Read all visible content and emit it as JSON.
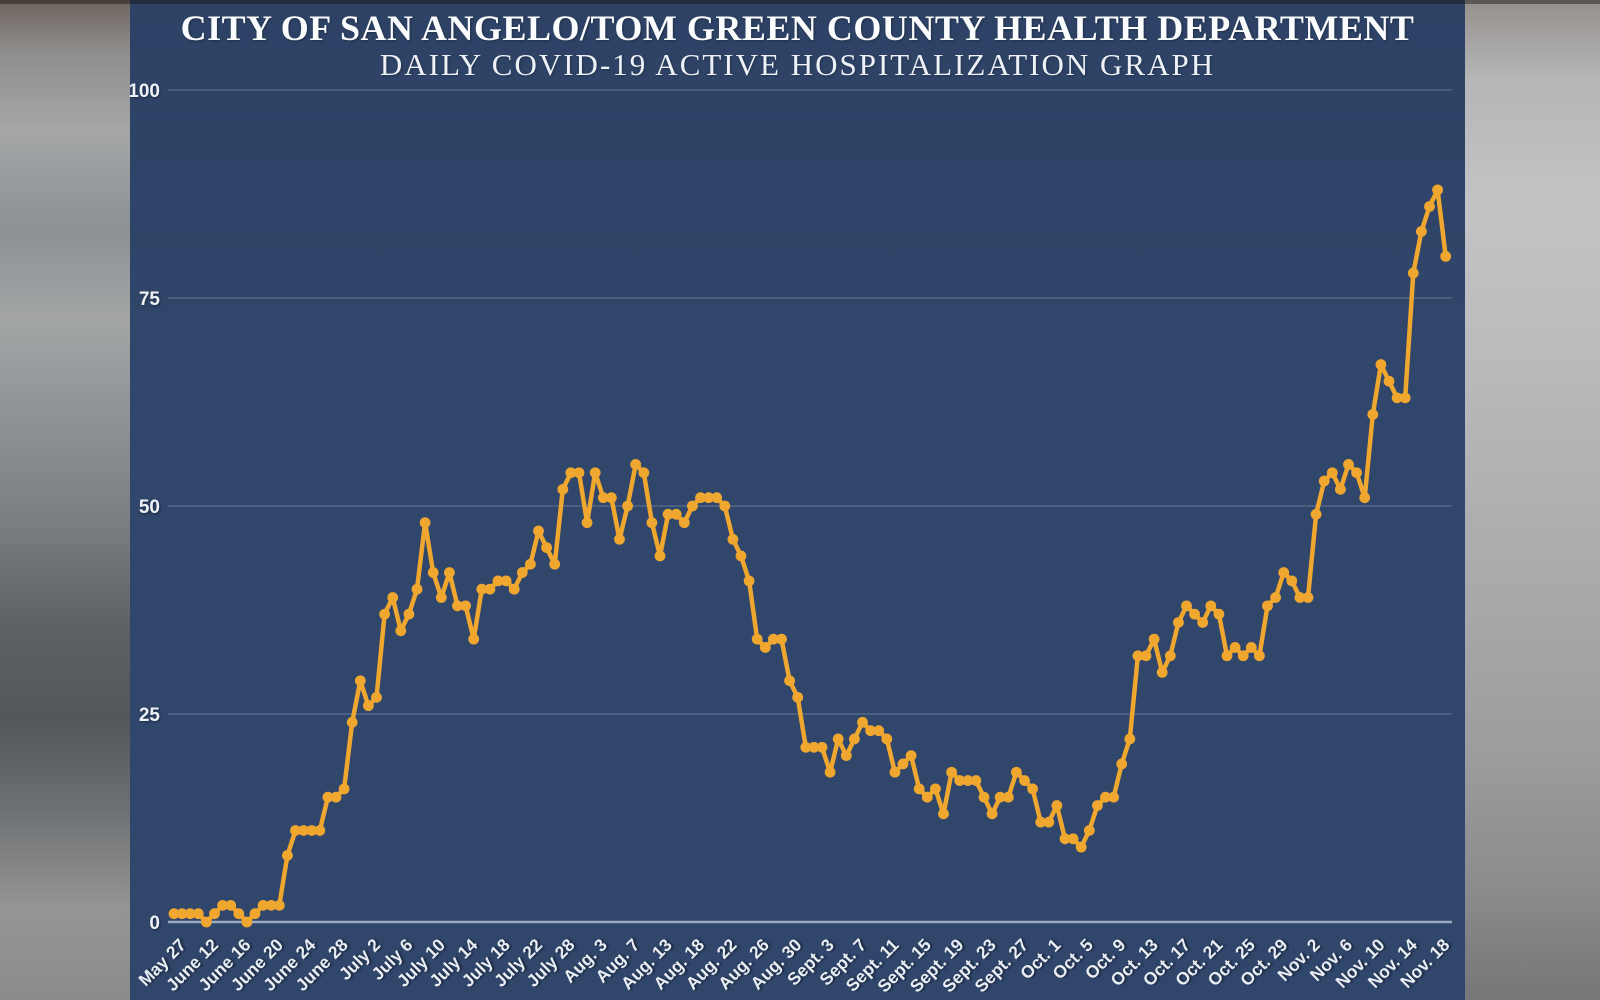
{
  "header": {
    "title": "CITY OF SAN ANGELO/TOM GREEN COUNTY HEALTH DEPARTMENT",
    "subtitle": "DAILY COVID-19 ACTIVE HOSPITALIZATION GRAPH"
  },
  "colors": {
    "card_background": "#30466A",
    "line": "#EFA72F",
    "gridline": "#ADBCCF",
    "tick_label": "#EDF1F7"
  },
  "chart_data": {
    "type": "line",
    "title": "CITY OF SAN ANGELO/TOM GREEN COUNTY HEALTH DEPARTMENT",
    "subtitle": "DAILY COVID-19 ACTIVE HOSPITALIZATION GRAPH",
    "xlabel": "",
    "ylabel": "",
    "ylim": [
      0,
      100
    ],
    "y_ticks": [
      0,
      25,
      50,
      75,
      100
    ],
    "grid": true,
    "legend": false,
    "line_color": "#EFA72F",
    "x_ticks_every": 4,
    "x_tick_labels": [
      "May 27",
      "June 12",
      "June 16",
      "June 20",
      "June 24",
      "June 28",
      "July 2",
      "July 6",
      "July 10",
      "July 14",
      "July 18",
      "July 22",
      "July 28",
      "Aug. 3",
      "Aug. 7",
      "Aug. 13",
      "Aug. 18",
      "Aug. 22",
      "Aug. 26",
      "Aug. 30",
      "Sept. 3",
      "Sept. 7",
      "Sept. 11",
      "Sept. 15",
      "Sept. 19",
      "Sept. 23",
      "Sept. 27",
      "Oct. 1",
      "Oct. 5",
      "Oct. 9",
      "Oct. 13",
      "Oct. 17",
      "Oct. 21",
      "Oct. 25",
      "Oct. 29",
      "Nov. 2",
      "Nov. 6",
      "Nov. 10",
      "Nov. 14",
      "Nov. 18"
    ],
    "values": [
      1,
      1,
      1,
      1,
      0,
      1,
      2,
      2,
      1,
      0,
      1,
      2,
      2,
      2,
      8,
      11,
      11,
      11,
      11,
      15,
      15,
      16,
      24,
      29,
      26,
      27,
      37,
      39,
      35,
      37,
      40,
      48,
      42,
      39,
      42,
      38,
      38,
      34,
      40,
      40,
      41,
      41,
      40,
      42,
      43,
      47,
      45,
      43,
      52,
      54,
      54,
      48,
      54,
      51,
      51,
      46,
      50,
      55,
      54,
      48,
      44,
      49,
      49,
      48,
      50,
      51,
      51,
      51,
      50,
      46,
      44,
      41,
      34,
      33,
      34,
      34,
      29,
      27,
      21,
      21,
      21,
      18,
      22,
      20,
      22,
      24,
      23,
      23,
      22,
      18,
      19,
      20,
      16,
      15,
      16,
      13,
      18,
      17,
      17,
      17,
      15,
      13,
      15,
      15,
      18,
      17,
      16,
      12,
      12,
      14,
      10,
      10,
      9,
      11,
      14,
      15,
      15,
      19,
      22,
      32,
      32,
      34,
      30,
      32,
      36,
      38,
      37,
      36,
      38,
      37,
      32,
      33,
      32,
      33,
      32,
      38,
      39,
      42,
      41,
      39,
      39,
      49,
      53,
      54,
      52,
      55,
      54,
      51,
      61,
      67,
      65,
      63,
      63,
      78,
      83,
      86,
      88,
      80
    ]
  }
}
